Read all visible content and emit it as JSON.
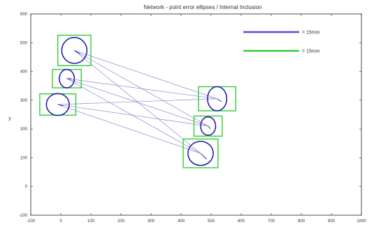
{
  "chart_data": {
    "type": "scatter",
    "title": "Network - point error ellipses / Internal Inclusion",
    "xlabel": "",
    "ylabel": "y",
    "xlim": [
      -100,
      1000
    ],
    "ylim": [
      -100,
      600
    ],
    "grid": false,
    "x_ticks": [
      -100,
      0,
      100,
      200,
      300,
      400,
      500,
      600,
      700,
      800,
      900,
      1000
    ],
    "y_ticks": [
      -100,
      0,
      100,
      200,
      300,
      400,
      500,
      600
    ],
    "x_tick_labels": [
      "-100",
      "0",
      "100",
      "200",
      "300",
      "400",
      "500",
      "600",
      "700",
      "800",
      "900",
      "1000"
    ],
    "y_tick_labels": [
      "-100",
      "0",
      "100",
      "200",
      "300",
      "400",
      "500",
      "600"
    ],
    "legend": {
      "placement": "top-right",
      "entries": [
        {
          "label": "= 15mm",
          "color": "#4f4fd0"
        },
        {
          "label": "= 15mm",
          "color": "#33cc33"
        }
      ]
    },
    "points": [
      {
        "x": 45,
        "y": 473,
        "ellipse_rx": 42,
        "ellipse_ry": 45,
        "box_half_w": 55,
        "box_half_h": 53,
        "vector_dx": 20,
        "vector_dy": -12
      },
      {
        "x": 20,
        "y": 375,
        "ellipse_rx": 25,
        "ellipse_ry": 32,
        "box_half_w": 48,
        "box_half_h": 32,
        "vector_dx": 15,
        "vector_dy": 0
      },
      {
        "x": -10,
        "y": 285,
        "ellipse_rx": 38,
        "ellipse_ry": 38,
        "box_half_w": 60,
        "box_half_h": 37,
        "vector_dx": 18,
        "vector_dy": -5
      },
      {
        "x": 520,
        "y": 305,
        "ellipse_rx": 32,
        "ellipse_ry": 42,
        "box_half_w": 62,
        "box_half_h": 42,
        "vector_dx": 15,
        "vector_dy": -10
      },
      {
        "x": 490,
        "y": 210,
        "ellipse_rx": 25,
        "ellipse_ry": 32,
        "box_half_w": 47,
        "box_half_h": 35,
        "vector_dx": 8,
        "vector_dy": -10
      },
      {
        "x": 465,
        "y": 115,
        "ellipse_rx": 42,
        "ellipse_ry": 42,
        "box_half_w": 58,
        "box_half_h": 50,
        "vector_dx": 20,
        "vector_dy": -20
      }
    ],
    "connections": [
      [
        0,
        3
      ],
      [
        0,
        4
      ],
      [
        0,
        5
      ],
      [
        1,
        3
      ],
      [
        1,
        4
      ],
      [
        1,
        5
      ],
      [
        2,
        3
      ],
      [
        2,
        4
      ],
      [
        2,
        5
      ]
    ],
    "colors": {
      "ellipse": "#2222aa",
      "box": "#33cc33",
      "connection": "#8888cc",
      "vector": "#2222aa",
      "axes": "#222222"
    }
  }
}
